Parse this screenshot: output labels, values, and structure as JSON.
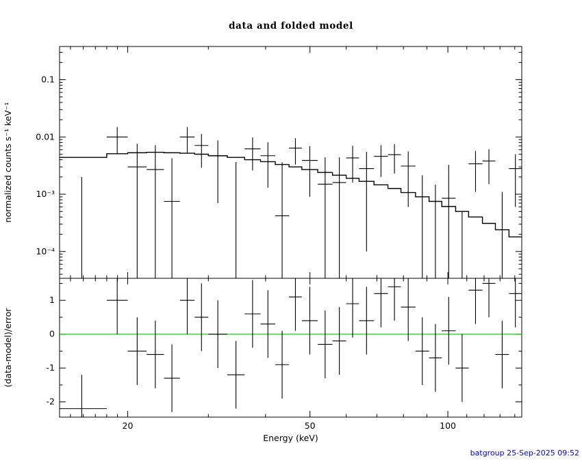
{
  "title": "data and folded model",
  "footer": {
    "text": "batgroup 25-Sep-2025 09:52",
    "color": "#0000dd"
  },
  "colors": {
    "frame": "#000000",
    "model_line": "#000000",
    "data_marks": "#000000",
    "zero_line": "#00cc00",
    "background": "#ffffff"
  },
  "chart_data": [
    {
      "panel": "top",
      "type": "line",
      "title": "data and folded model",
      "ylabel": "normalized counts s⁻¹ keV⁻¹",
      "xscale": "log",
      "yscale": "log",
      "xlim": [
        14.2,
        145
      ],
      "ylim": [
        3.4e-05,
        0.38
      ],
      "xticks": [
        20,
        50,
        100
      ],
      "xtick_labels": [
        "20",
        "50",
        "100"
      ],
      "xminor_ticks": [
        15,
        16,
        17,
        18,
        19,
        30,
        40,
        60,
        70,
        80,
        90,
        110,
        120,
        130,
        140
      ],
      "yticks": [
        0.1,
        0.01,
        0.001,
        0.0001
      ],
      "ytick_labels": [
        "0.1",
        "0.01",
        "10⁻³",
        "10⁻⁴"
      ],
      "bin_edges_kev": [
        14,
        18,
        20,
        22,
        24,
        26,
        28,
        30,
        33,
        36,
        39,
        42,
        45,
        48,
        52,
        56,
        60,
        64,
        69,
        74,
        79,
        85,
        91,
        97,
        104,
        111,
        119,
        127,
        136,
        145
      ],
      "model_counts": [
        0.0044,
        0.0051,
        0.0053,
        0.0054,
        0.0053,
        0.0052,
        0.005,
        0.0047,
        0.0044,
        0.004,
        0.0037,
        0.0033,
        0.003,
        0.0027,
        0.0024,
        0.00215,
        0.0019,
        0.00168,
        0.00146,
        0.00126,
        0.00107,
        0.0009,
        0.00075,
        0.00061,
        0.0005,
        0.0004,
        0.00031,
        0.00024,
        0.00018
      ],
      "data_counts": [
        0.0,
        0.01,
        0.003,
        0.0027,
        0.00075,
        0.01,
        0.0071,
        0.0047,
        -0.00016,
        0.0062,
        0.0047,
        0.00042,
        0.0064,
        0.0039,
        0.0015,
        0.0016,
        0.0043,
        0.0028,
        0.0046,
        0.0049,
        0.0031,
        -0.00035,
        -0.00093,
        0.00085,
        -0.0018,
        0.0034,
        0.0038,
        -0.0011,
        0.0028
      ],
      "data_err": [
        0.002,
        0.0049,
        0.0046,
        0.0045,
        0.0035,
        0.0048,
        0.0042,
        0.004,
        0.0038,
        0.0036,
        0.0034,
        0.0032,
        0.0031,
        0.003,
        0.0029,
        0.0028,
        0.0027,
        0.0027,
        0.0026,
        0.0026,
        0.0025,
        0.0025,
        0.0024,
        0.0024,
        0.0023,
        0.0023,
        0.0023,
        0.0022,
        0.0022
      ]
    },
    {
      "panel": "bottom",
      "type": "scatter",
      "xlabel": "Energy (keV)",
      "ylabel": "(data-model)/error",
      "xscale": "log",
      "yscale": "linear",
      "xlim": [
        14.2,
        145
      ],
      "ylim": [
        -2.45,
        1.65
      ],
      "yticks": [
        -2,
        -1,
        0,
        1
      ],
      "ytick_labels": [
        "-2",
        "-1",
        "0",
        "1"
      ],
      "yminor_ticks": [
        -1.5,
        -0.5,
        0.5,
        1.5
      ],
      "residuals": [
        -2.2,
        1.0,
        -0.5,
        -0.6,
        -1.3,
        1.0,
        0.5,
        0.0,
        -1.2,
        0.6,
        0.3,
        -0.9,
        1.1,
        0.4,
        -0.3,
        -0.2,
        0.9,
        0.4,
        1.2,
        1.4,
        0.8,
        -0.5,
        -0.7,
        0.1,
        -1.0,
        1.3,
        1.5,
        -0.6,
        1.2
      ],
      "residual_err": 1,
      "zero_line_value": 0
    }
  ]
}
